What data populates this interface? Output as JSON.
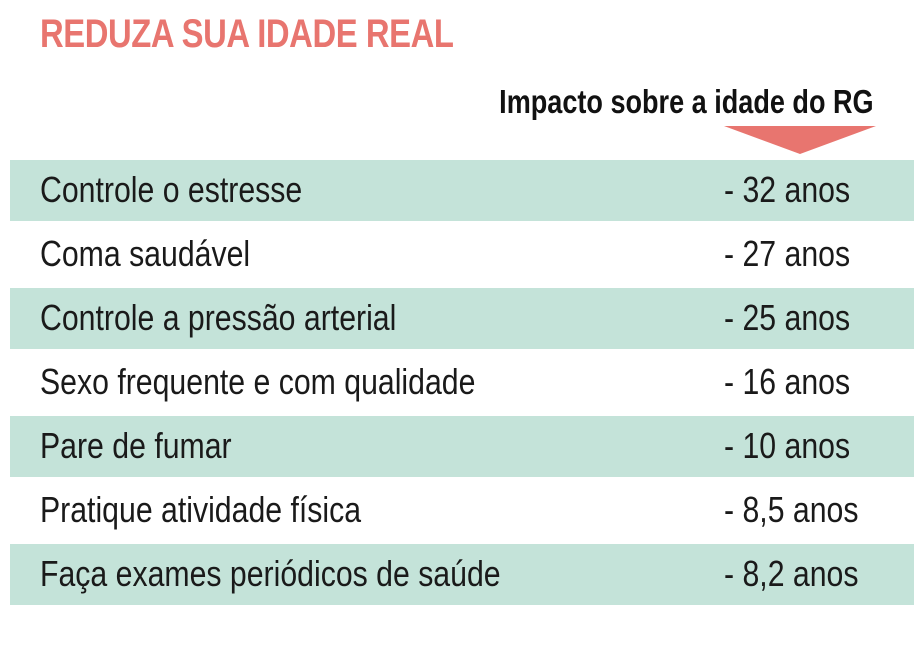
{
  "title": "REDUZA SUA IDADE REAL",
  "column_header": "Impacto sobre a idade do RG",
  "colors": {
    "title": "#e8756f",
    "arrow": "#e8756f",
    "row_shade": "#c4e3d9",
    "text": "#1a1a1a"
  },
  "rows": [
    {
      "label": "Controle o estresse",
      "value": "- 32 anos"
    },
    {
      "label": "Coma saudável",
      "value": "- 27 anos"
    },
    {
      "label": "Controle a pressão arterial",
      "value": "- 25 anos"
    },
    {
      "label": "Sexo frequente e com qualidade",
      "value": "- 16 anos"
    },
    {
      "label": "Pare de fumar",
      "value": "- 10 anos"
    },
    {
      "label": "Pratique atividade física",
      "value": "- 8,5 anos"
    },
    {
      "label": "Faça exames periódicos de saúde",
      "value": "- 8,2 anos"
    }
  ]
}
